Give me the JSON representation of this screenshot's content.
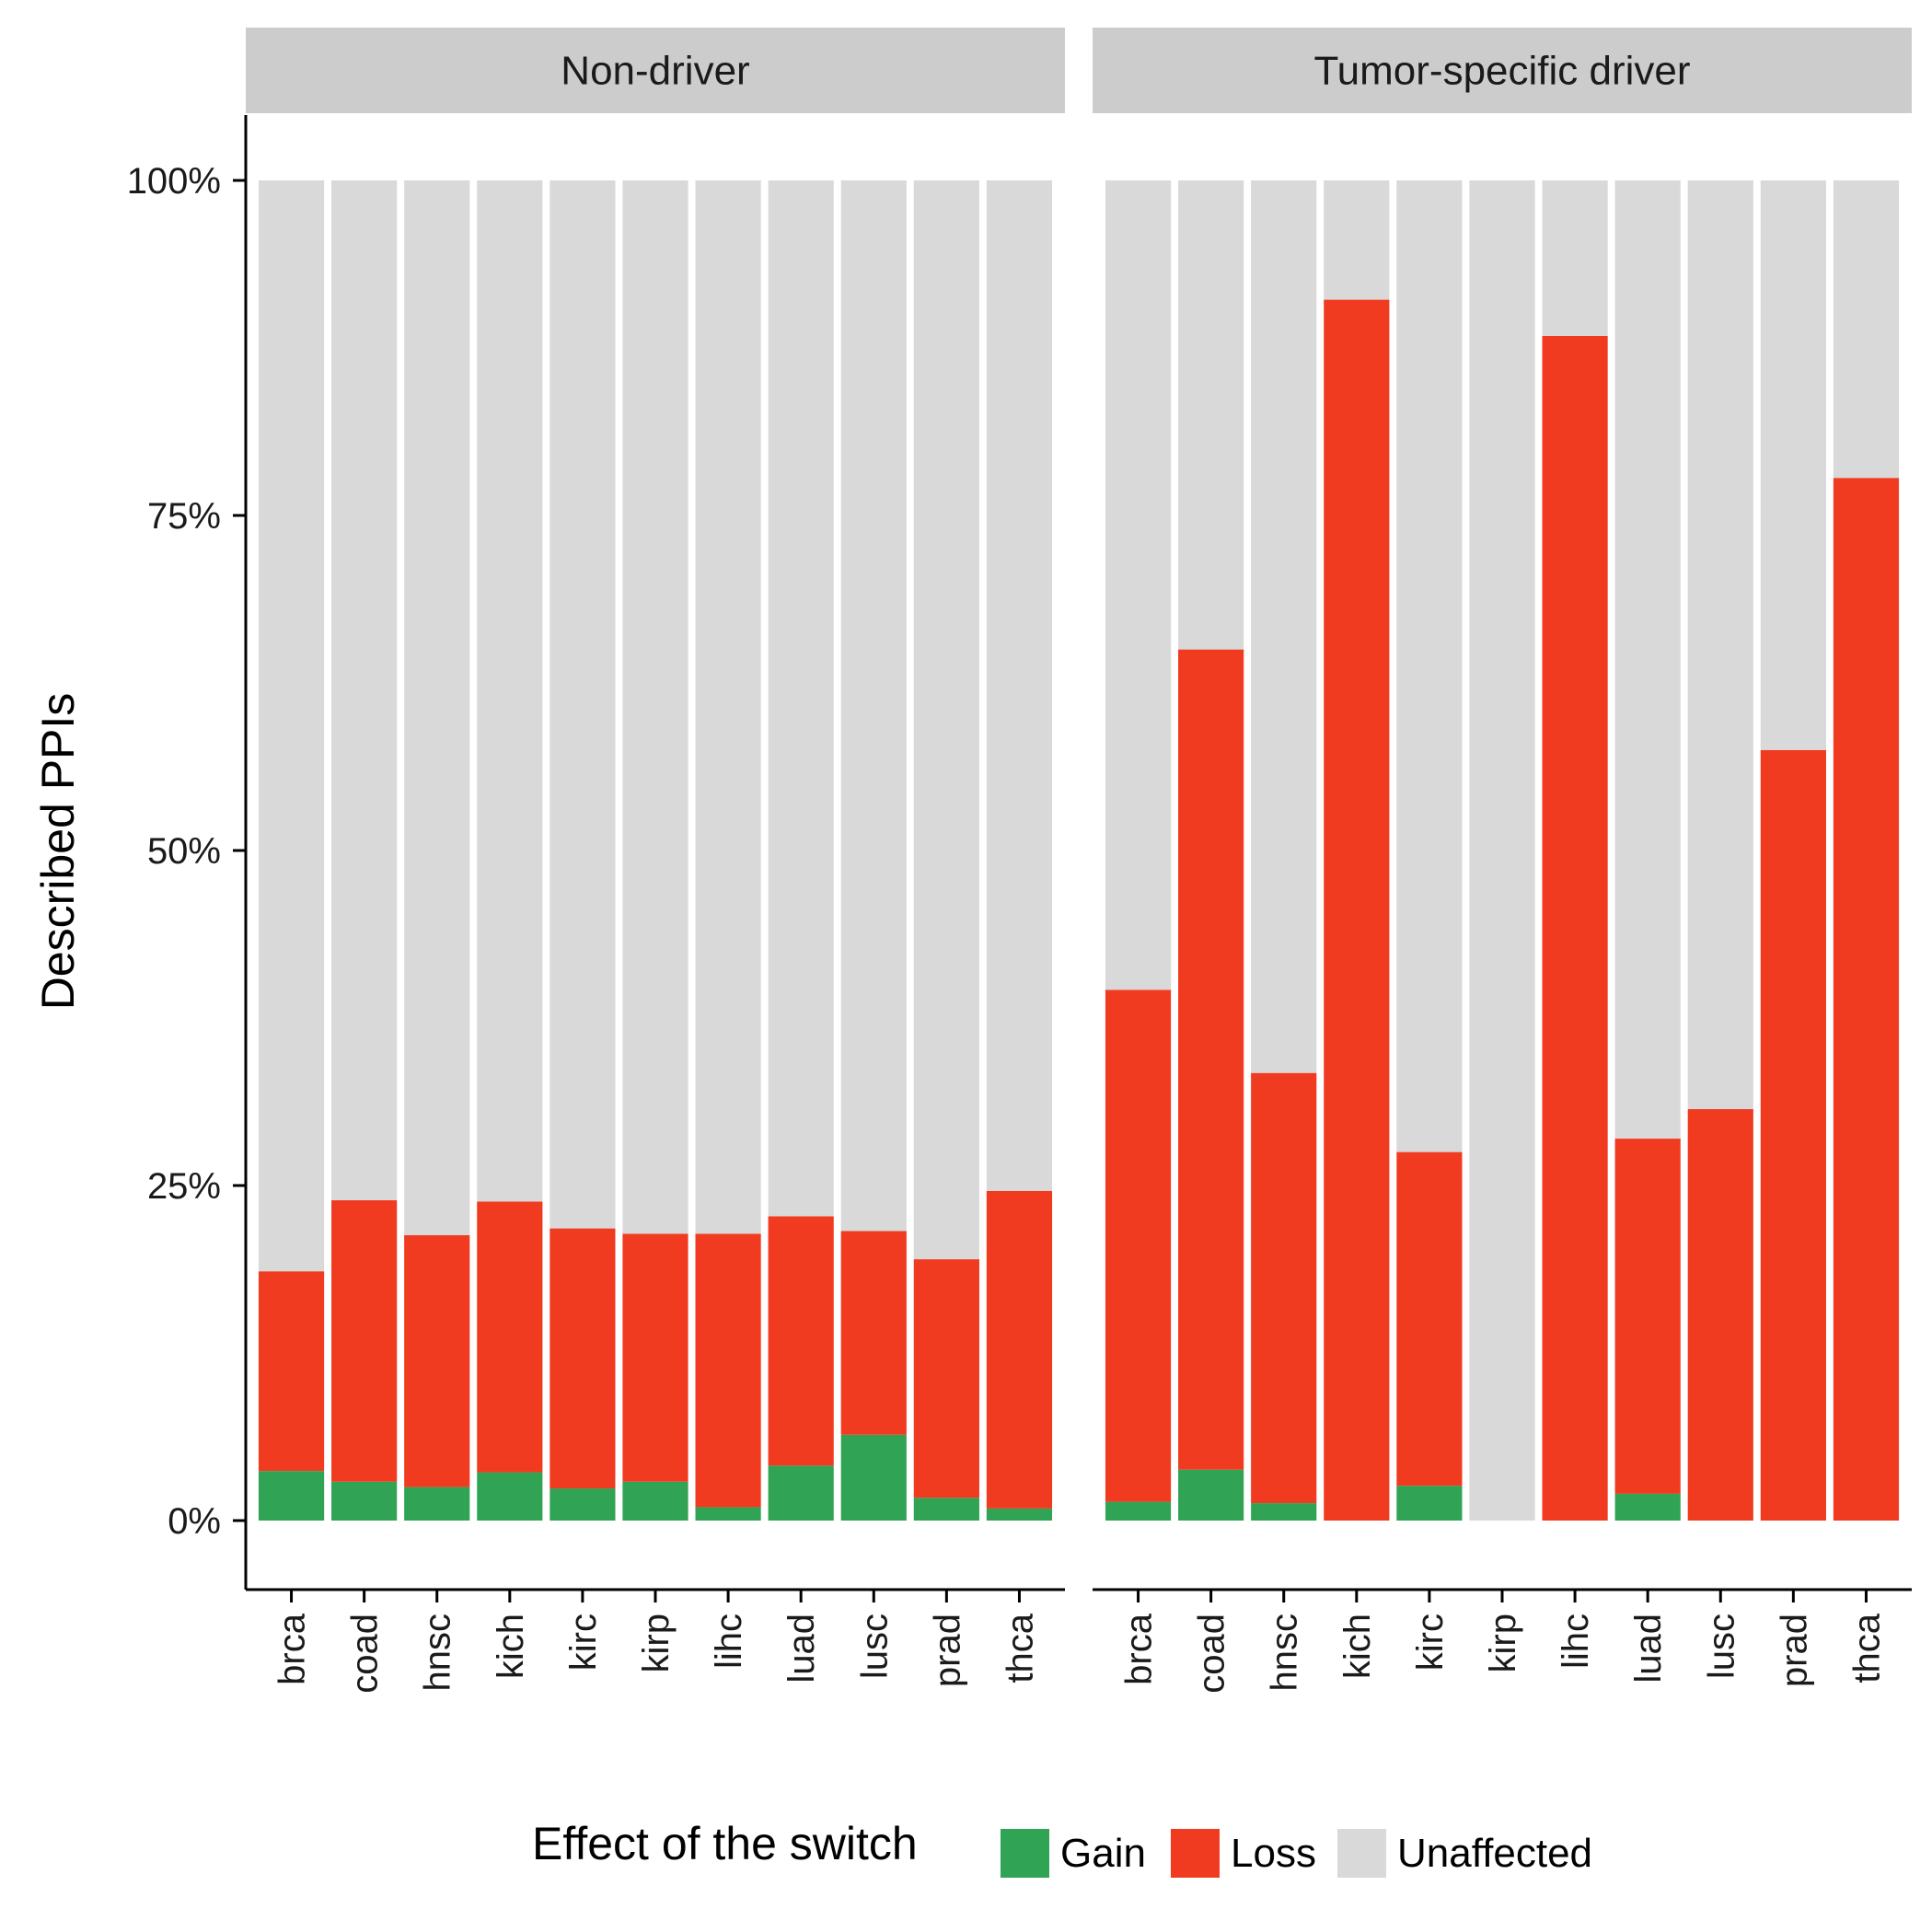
{
  "chart_data": {
    "type": "bar",
    "stacked": true,
    "ylabel": "Described PPIs",
    "ylim": [
      0,
      1
    ],
    "yticks": [
      0,
      0.25,
      0.5,
      0.75,
      1.0
    ],
    "ytick_labels": [
      "0%",
      "25%",
      "50%",
      "75%",
      "100%"
    ],
    "grid": false,
    "legend": {
      "title": "Effect of the switch",
      "position": "bottom",
      "items": [
        {
          "name": "Gain",
          "color": "#31a354"
        },
        {
          "name": "Loss",
          "color": "#f03b20"
        },
        {
          "name": "Unaffected",
          "color": "#d9d9d9"
        }
      ]
    },
    "categories": [
      "brca",
      "coad",
      "hnsc",
      "kich",
      "kirc",
      "kirp",
      "lihc",
      "luad",
      "lusc",
      "prad",
      "thca"
    ],
    "panels": [
      {
        "title": "Non-driver",
        "series": [
          {
            "name": "Gain",
            "values": [
              0.037,
              0.029,
              0.025,
              0.036,
              0.024,
              0.029,
              0.01,
              0.041,
              0.064,
              0.017,
              0.009
            ]
          },
          {
            "name": "Loss",
            "values": [
              0.149,
              0.21,
              0.188,
              0.202,
              0.194,
              0.185,
              0.204,
              0.186,
              0.152,
              0.178,
              0.237
            ]
          },
          {
            "name": "Unaffected",
            "values": [
              0.814,
              0.761,
              0.787,
              0.762,
              0.782,
              0.786,
              0.786,
              0.773,
              0.784,
              0.805,
              0.754
            ]
          }
        ]
      },
      {
        "title": "Tumor-specific driver",
        "series": [
          {
            "name": "Gain",
            "values": [
              0.014,
              0.038,
              0.013,
              0.0,
              0.026,
              0.0,
              0.0,
              0.02,
              0.0,
              0.0,
              0.0
            ]
          },
          {
            "name": "Loss",
            "values": [
              0.382,
              0.612,
              0.321,
              0.911,
              0.249,
              0.0,
              0.884,
              0.265,
              0.307,
              0.575,
              0.778
            ]
          },
          {
            "name": "Unaffected",
            "values": [
              0.604,
              0.35,
              0.666,
              0.089,
              0.725,
              1.0,
              0.116,
              0.715,
              0.693,
              0.425,
              0.222
            ]
          }
        ]
      }
    ]
  }
}
